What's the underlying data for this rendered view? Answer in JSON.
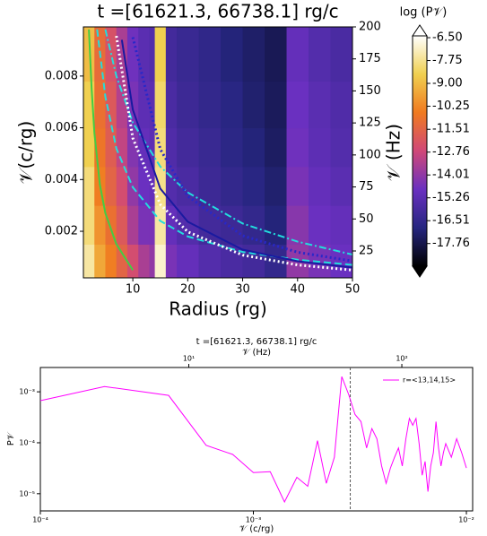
{
  "chart_data": [
    {
      "type": "heatmap",
      "title": "t =[61621.3, 66738.1] rg/c",
      "xlabel": "Radius (rg)",
      "ylabel": "𝒱(c/rg)",
      "y2label": "𝒱 (Hz)",
      "colorbar_label": "log (P𝒱)",
      "xlim": [
        1,
        50
      ],
      "ylim": [
        0.0002,
        0.0099
      ],
      "y2lim": [
        4,
        200
      ],
      "xticks": [
        10,
        20,
        30,
        40,
        50
      ],
      "yticks": [
        0.002,
        0.004,
        0.006,
        0.008
      ],
      "y2ticks": [
        25,
        50,
        75,
        100,
        125,
        150,
        175,
        200
      ],
      "x_edges": [
        1,
        3,
        5,
        7,
        9,
        11,
        13,
        14,
        16,
        18,
        22,
        26,
        30,
        34,
        38,
        42,
        46,
        50
      ],
      "y_edges": [
        0.0002,
        0.0015,
        0.003,
        0.0045,
        0.006,
        0.0078,
        0.0099
      ],
      "z": [
        [
          -7.5,
          -9.5,
          -10.5,
          -11.5,
          -12.5,
          -13.5,
          -14,
          -7,
          -14.5,
          -15,
          -15.5,
          -15.8,
          -16,
          -16.5,
          -14,
          -14.5,
          -14.8
        ],
        [
          -8,
          -10,
          -11,
          -12,
          -13.5,
          -14.5,
          -14.5,
          -7.5,
          -15,
          -15.5,
          -16,
          -16.2,
          -16.5,
          -17,
          -14.2,
          -14.8,
          -15
        ],
        [
          -8,
          -10.5,
          -11.5,
          -12.5,
          -14,
          -14.8,
          -15,
          -7.8,
          -15.5,
          -15.8,
          -16.2,
          -16.5,
          -16.8,
          -17.2,
          -14.5,
          -15,
          -15.3
        ],
        [
          -8.5,
          -10.8,
          -11.8,
          -13,
          -14.3,
          -15,
          -15.2,
          -8,
          -15.6,
          -16,
          -16.3,
          -16.7,
          -17,
          -17.4,
          -14.7,
          -15.2,
          -15.5
        ],
        [
          -8.5,
          -11,
          -12,
          -13.3,
          -14.5,
          -15.2,
          -15.3,
          -8.2,
          -15.8,
          -16.2,
          -16.5,
          -16.8,
          -17.2,
          -17.5,
          -14.8,
          -15.3,
          -15.6
        ],
        [
          -9,
          -11.2,
          -12.3,
          -13.5,
          -14.7,
          -15.3,
          -15.5,
          -8.5,
          -16,
          -16.3,
          -16.6,
          -17,
          -17.3,
          -17.6,
          -15,
          -15.5,
          -15.8
        ]
      ],
      "clim": [
        -19.0,
        -6.4
      ],
      "cticks": [
        {
          "value": -6.5,
          "label": "-6.50"
        },
        {
          "value": -7.75,
          "label": "-7.75"
        },
        {
          "value": -9.0,
          "label": "-9.00"
        },
        {
          "value": -10.25,
          "label": "-10.25"
        },
        {
          "value": -11.51,
          "label": "-11.51"
        },
        {
          "value": -12.76,
          "label": "-12.76"
        },
        {
          "value": -14.01,
          "label": "-14.01"
        },
        {
          "value": -15.26,
          "label": "-15.26"
        },
        {
          "value": -16.51,
          "label": "-16.51"
        },
        {
          "value": -17.76,
          "label": "-17.76"
        }
      ],
      "colormap": [
        "#000000",
        "#262680",
        "#6a30c0",
        "#d04878",
        "#f07a20",
        "#f0d050",
        "#ffffff"
      ],
      "series": [
        {
          "color": "#44cc44",
          "dash": "solid",
          "x": [
            2,
            2.5,
            3,
            4,
            5,
            7,
            10
          ],
          "values": [
            0.0098,
            0.0075,
            0.0058,
            0.0038,
            0.0027,
            0.0015,
            0.0005
          ]
        },
        {
          "color": "#22dddd",
          "dash": "dashed",
          "x": [
            3.5,
            5,
            7,
            10,
            15,
            20,
            30,
            40,
            50
          ],
          "values": [
            0.0098,
            0.0072,
            0.0052,
            0.0037,
            0.0024,
            0.0018,
            0.0012,
            0.0009,
            0.0007
          ]
        },
        {
          "color": "#22dddd",
          "dash": "dashdot",
          "x": [
            5,
            7,
            10,
            15,
            20,
            30,
            40,
            50
          ],
          "values": [
            0.0098,
            0.008,
            0.0062,
            0.0045,
            0.0035,
            0.0023,
            0.0016,
            0.0011
          ]
        },
        {
          "color": "#1a1aa0",
          "dash": "solid",
          "x": [
            8,
            10,
            15,
            20,
            30,
            40,
            50
          ],
          "values": [
            0.0094,
            0.0067,
            0.00365,
            0.00237,
            0.00129,
            0.00084,
            0.0006
          ]
        },
        {
          "color": "#2828c8",
          "dash": "dotted",
          "x": [
            10,
            15,
            20,
            30,
            40,
            50
          ],
          "values": [
            0.0095,
            0.00517,
            0.00336,
            0.00183,
            0.00119,
            0.00085
          ]
        },
        {
          "color": "#ffffff",
          "dash": "dotted",
          "x": [
            7,
            10,
            15,
            20,
            30,
            40,
            50
          ],
          "values": [
            0.00955,
            0.0056,
            0.00304,
            0.00198,
            0.00108,
            0.0007,
            0.0005
          ]
        }
      ]
    },
    {
      "type": "line",
      "title": "t =[61621.3, 66738.1] rg/c",
      "x2label": "𝒱 (Hz)",
      "xlabel": "𝒱 (c/rg)",
      "ylabel": "P𝒱",
      "log": true,
      "xlim": [
        0.0001,
        0.0107
      ],
      "ylim": [
        4.6e-06,
        0.003
      ],
      "x2lim": [
        2.01,
        215
      ],
      "xticks": [
        {
          "value": 0.0001,
          "label": "10⁻⁴"
        },
        {
          "value": 0.001,
          "label": "10⁻³"
        },
        {
          "value": 0.01,
          "label": "10⁻²"
        }
      ],
      "x2ticks": [
        {
          "value": 10,
          "label": "10¹"
        },
        {
          "value": 100,
          "label": "10²"
        }
      ],
      "yticks": [
        {
          "value": 1e-05,
          "label": "10⁻⁵"
        },
        {
          "value": 0.0001,
          "label": "10⁻⁴"
        },
        {
          "value": 0.001,
          "label": "10⁻³"
        }
      ],
      "vline": 0.00285,
      "vline_color": "#555555",
      "legend": "upper right",
      "x": [
        0.0001,
        0.0002,
        0.0004,
        0.0006,
        0.0008,
        0.001,
        0.0012,
        0.0014,
        0.0016,
        0.0018,
        0.002,
        0.0022,
        0.0024,
        0.0026,
        0.0028,
        0.003,
        0.0032,
        0.0034,
        0.0036,
        0.0038,
        0.004,
        0.0042,
        0.0044,
        0.0046,
        0.0048,
        0.005,
        0.0052,
        0.0054,
        0.0056,
        0.0058,
        0.006,
        0.0062,
        0.0064,
        0.0066,
        0.0068,
        0.007,
        0.0072,
        0.0074,
        0.0076,
        0.0078,
        0.008,
        0.0085,
        0.009,
        0.0095,
        0.01
      ],
      "series": [
        {
          "name": "r=<13,14,15>",
          "color": "#ff00ff",
          "values": [
            0.00067,
            0.00127,
            0.00085,
            8.9e-05,
            5.9e-05,
            2.6e-05,
            2.7e-05,
            6.9e-06,
            2.1e-05,
            1.4e-05,
            0.00011,
            1.6e-05,
            5.2e-05,
            0.00199,
            0.00089,
            0.00036,
            0.00026,
            7.9e-05,
            0.00019,
            0.00012,
            3.5e-05,
            1.6e-05,
            3.2e-05,
            5.2e-05,
            7.9e-05,
            3.5e-05,
            0.00012,
            0.0003,
            0.00022,
            0.0003,
            9.6e-05,
            2.3e-05,
            4.3e-05,
            1.1e-05,
            3.5e-05,
            6.4e-05,
            0.00026,
            7.9e-05,
            3.5e-05,
            6.4e-05,
            9.6e-05,
            5.2e-05,
            0.00012,
            6.4e-05,
            3.2e-05
          ]
        }
      ]
    }
  ]
}
